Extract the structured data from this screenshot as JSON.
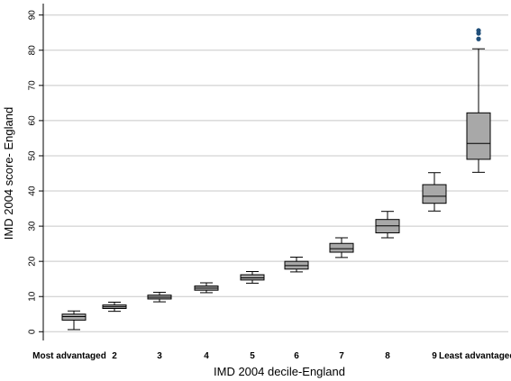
{
  "chart_data": {
    "type": "box",
    "xlabel": "IMD 2004 decile-England",
    "ylabel": "IMD 2004 score- England",
    "ylim": [
      -2,
      93
    ],
    "yticks": [
      0,
      10,
      20,
      30,
      40,
      50,
      60,
      70,
      80,
      90
    ],
    "grid": true,
    "colors": {
      "box_fill": "#a8a8a8",
      "outlier": "#1f4e79",
      "grid": "#c8c8c8"
    },
    "categories": [
      "Most advantaged",
      "2",
      "3",
      "4",
      "5",
      "6",
      "7",
      "8",
      "9",
      "Least advantaged"
    ],
    "boxes": [
      {
        "min": 0.6,
        "q1": 3.3,
        "median": 4.3,
        "q3": 5.0,
        "max": 5.9,
        "outliers": []
      },
      {
        "min": 5.8,
        "q1": 6.6,
        "median": 7.1,
        "q3": 7.6,
        "max": 8.4,
        "outliers": []
      },
      {
        "min": 8.5,
        "q1": 9.3,
        "median": 9.8,
        "q3": 10.4,
        "max": 11.2,
        "outliers": []
      },
      {
        "min": 11.1,
        "q1": 11.8,
        "median": 12.4,
        "q3": 13.0,
        "max": 13.9,
        "outliers": []
      },
      {
        "min": 13.8,
        "q1": 14.7,
        "median": 15.3,
        "q3": 16.2,
        "max": 17.1,
        "outliers": []
      },
      {
        "min": 17.0,
        "q1": 17.8,
        "median": 18.8,
        "q3": 20.0,
        "max": 21.2,
        "outliers": []
      },
      {
        "min": 21.1,
        "q1": 22.6,
        "median": 23.6,
        "q3": 25.1,
        "max": 26.7,
        "outliers": []
      },
      {
        "min": 26.7,
        "q1": 28.1,
        "median": 30.1,
        "q3": 31.9,
        "max": 34.2,
        "outliers": []
      },
      {
        "min": 34.3,
        "q1": 36.5,
        "median": 38.5,
        "q3": 41.8,
        "max": 45.2,
        "outliers": []
      },
      {
        "min": 45.3,
        "q1": 49.0,
        "median": 53.5,
        "q3": 62.2,
        "max": 80.4,
        "outliers": [
          83.2,
          84.8,
          85.6
        ]
      }
    ]
  }
}
